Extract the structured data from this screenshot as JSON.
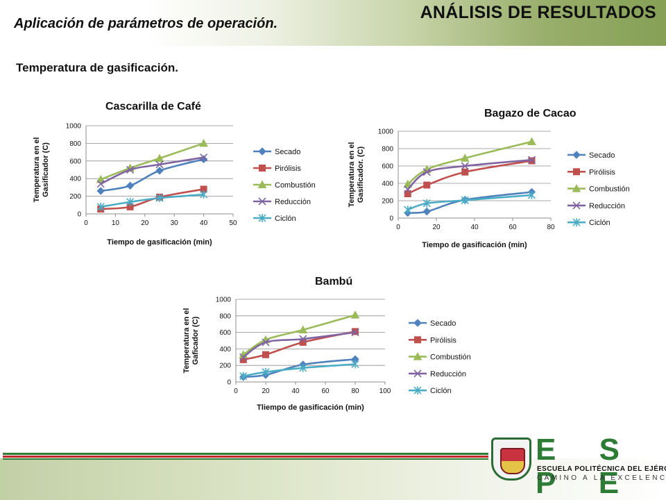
{
  "header": {
    "title": "ANÁLISIS DE RESULTADOS",
    "subtitle": "Aplicación de parámetros de operación.",
    "section": "Temperatura de gasificación."
  },
  "colors": {
    "Secado": "#4f81bd",
    "Pirólisis": "#c0504d",
    "Combustión": "#9bbb59",
    "Reducción": "#8064a2",
    "Ciclón": "#4bacc6",
    "espe_green": "#2e7b36"
  },
  "logo": {
    "letters": "E S P E",
    "line1": "ESCUELA POLITÉCNICA DEL EJÉRCITO",
    "line2": "CAMINO A LA EXCELENCIA"
  },
  "chart_data": [
    {
      "type": "line",
      "title": "Cascarilla de Café",
      "xlabel": "Tiempo de gasificación (min)",
      "ylabel_lines": [
        "Temperatura en el",
        "Gasificador (C)"
      ],
      "xlim": [
        0,
        50
      ],
      "ylim": [
        0,
        1000
      ],
      "xticks": [
        0,
        10,
        20,
        30,
        40,
        50
      ],
      "yticks": [
        0,
        200,
        400,
        600,
        800,
        1000
      ],
      "grid": true,
      "legend": "right",
      "series": [
        {
          "name": "Secado",
          "marker": "diamond",
          "x": [
            5,
            15,
            25,
            40
          ],
          "y": [
            260,
            320,
            490,
            620
          ]
        },
        {
          "name": "Pirólisis",
          "marker": "square",
          "x": [
            5,
            15,
            25,
            40
          ],
          "y": [
            55,
            80,
            190,
            280
          ]
        },
        {
          "name": "Combustión",
          "marker": "triangle",
          "x": [
            5,
            15,
            25,
            40
          ],
          "y": [
            390,
            520,
            630,
            800
          ]
        },
        {
          "name": "Reducción",
          "marker": "x",
          "x": [
            5,
            15,
            25,
            40
          ],
          "y": [
            340,
            500,
            560,
            640
          ]
        },
        {
          "name": "Ciclón",
          "marker": "star",
          "x": [
            5,
            15,
            25,
            40
          ],
          "y": [
            80,
            135,
            180,
            220
          ]
        }
      ]
    },
    {
      "type": "line",
      "title": "Bagazo de Cacao",
      "xlabel": "Tiempo de gasificación (min)",
      "ylabel_lines": [
        "Temperatura en el",
        "Gasificador. (C)"
      ],
      "xlim": [
        0,
        80
      ],
      "ylim": [
        0,
        1000
      ],
      "xticks": [
        0,
        20,
        40,
        60,
        80
      ],
      "yticks": [
        0,
        200,
        400,
        600,
        800,
        1000
      ],
      "grid": true,
      "legend": "right",
      "series": [
        {
          "name": "Secado",
          "marker": "diamond",
          "x": [
            5,
            15,
            35,
            70
          ],
          "y": [
            60,
            75,
            210,
            300
          ]
        },
        {
          "name": "Pirólisis",
          "marker": "square",
          "x": [
            5,
            15,
            35,
            70
          ],
          "y": [
            280,
            380,
            530,
            660
          ]
        },
        {
          "name": "Combustión",
          "marker": "triangle",
          "x": [
            5,
            15,
            35,
            70
          ],
          "y": [
            390,
            560,
            690,
            880
          ]
        },
        {
          "name": "Reducción",
          "marker": "x",
          "x": [
            5,
            15,
            35,
            70
          ],
          "y": [
            330,
            530,
            600,
            670
          ]
        },
        {
          "name": "Ciclón",
          "marker": "star",
          "x": [
            5,
            15,
            35,
            70
          ],
          "y": [
            95,
            170,
            205,
            265
          ]
        }
      ]
    },
    {
      "type": "line",
      "title": "Bambú",
      "xlabel": "Tliempo de gasificación (min)",
      "ylabel_lines": [
        "Temperatura en el",
        "Gaficador (C)"
      ],
      "xlim": [
        0,
        100
      ],
      "ylim": [
        0,
        1000
      ],
      "xticks": [
        0,
        20,
        40,
        60,
        80,
        100
      ],
      "yticks": [
        0,
        200,
        400,
        600,
        800,
        1000
      ],
      "grid": true,
      "legend": "right",
      "series": [
        {
          "name": "Secado",
          "marker": "diamond",
          "x": [
            5,
            20,
            45,
            80
          ],
          "y": [
            60,
            85,
            210,
            275
          ]
        },
        {
          "name": "Pirólisis",
          "marker": "square",
          "x": [
            5,
            20,
            45,
            80
          ],
          "y": [
            270,
            330,
            480,
            610
          ]
        },
        {
          "name": "Combustión",
          "marker": "triangle",
          "x": [
            5,
            20,
            45,
            80
          ],
          "y": [
            330,
            510,
            630,
            810
          ]
        },
        {
          "name": "Reducción",
          "marker": "x",
          "x": [
            5,
            20,
            45,
            80
          ],
          "y": [
            300,
            480,
            520,
            600
          ]
        },
        {
          "name": "Ciclón",
          "marker": "star",
          "x": [
            5,
            20,
            45,
            80
          ],
          "y": [
            70,
            120,
            170,
            215
          ]
        }
      ]
    }
  ]
}
